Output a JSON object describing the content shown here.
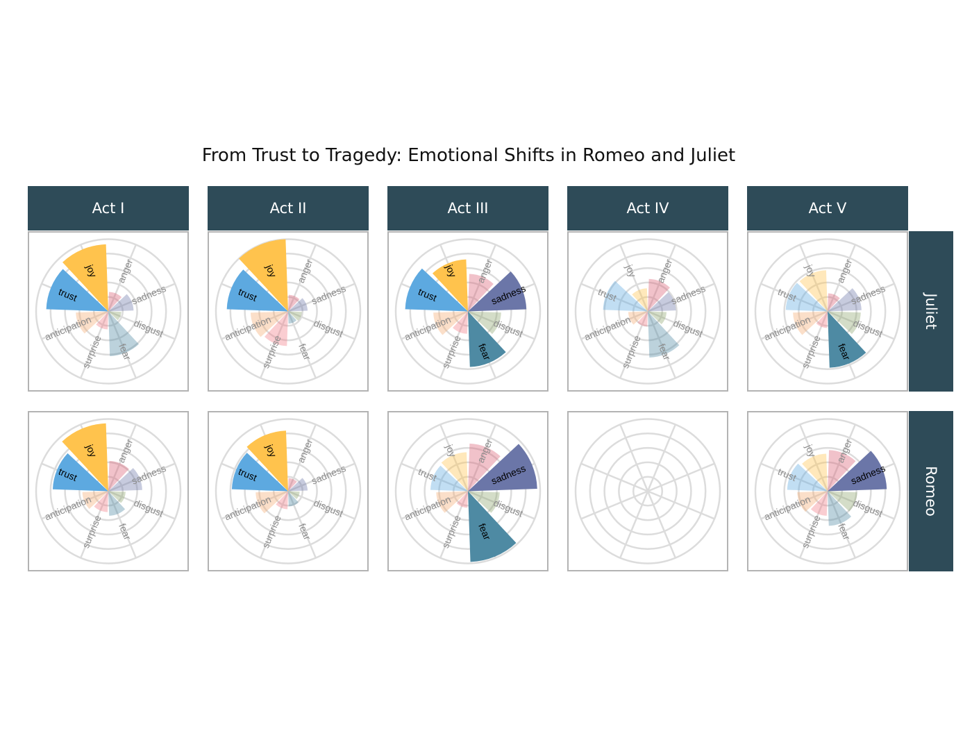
{
  "chart_data": {
    "type": "polar-bar",
    "title": "From Trust to Tragedy: Emotional Shifts in Romeo and Juliet",
    "columns": [
      "Act I",
      "Act II",
      "Act III",
      "Act IV",
      "Act V"
    ],
    "rows": [
      "Juliet",
      "Romeo"
    ],
    "emotions": [
      "anger",
      "sadness",
      "disgust",
      "fear",
      "surprise",
      "anticipation",
      "trust",
      "joy"
    ],
    "colors": {
      "anger": "#D95F73",
      "sadness": "#6B76A8",
      "disgust": "#8FA66E",
      "fear": "#4E8AA3",
      "surprise": "#F27C86",
      "anticipation": "#F5AA70",
      "trust": "#5DA9E0",
      "joy": "#FFC34D"
    },
    "strip_color": "#2E4B58",
    "highlight_threshold": 0.7,
    "radial_max": 1.0,
    "panels": [
      {
        "row": "Juliet",
        "column": "Act I",
        "values": [
          0.27,
          0.35,
          0.18,
          0.62,
          0.25,
          0.45,
          0.86,
          0.93
        ]
      },
      {
        "row": "Juliet",
        "column": "Act II",
        "values": [
          0.23,
          0.27,
          0.19,
          0.17,
          0.48,
          0.52,
          0.85,
          1.0
        ]
      },
      {
        "row": "Juliet",
        "column": "Act III",
        "values": [
          0.52,
          0.81,
          0.46,
          0.77,
          0.31,
          0.48,
          0.87,
          0.72
        ]
      },
      {
        "row": "Juliet",
        "column": "Act IV",
        "values": [
          0.45,
          0.39,
          0.26,
          0.64,
          0.21,
          0.27,
          0.62,
          0.32
        ]
      },
      {
        "row": "Juliet",
        "column": "Act V",
        "values": [
          0.25,
          0.47,
          0.46,
          0.78,
          0.23,
          0.48,
          0.58,
          0.57
        ]
      },
      {
        "row": "Romeo",
        "column": "Act I",
        "values": [
          0.42,
          0.47,
          0.24,
          0.34,
          0.29,
          0.36,
          0.77,
          0.94
        ]
      },
      {
        "row": "Romeo",
        "column": "Act II",
        "values": [
          0.18,
          0.27,
          0.16,
          0.21,
          0.25,
          0.45,
          0.78,
          0.84
        ]
      },
      {
        "row": "Romeo",
        "column": "Act III",
        "values": [
          0.66,
          0.96,
          0.44,
          0.98,
          0.23,
          0.44,
          0.52,
          0.54
        ]
      },
      {
        "row": "Romeo",
        "column": "Act IV",
        "values": []
      },
      {
        "row": "Romeo",
        "column": "Act V",
        "values": [
          0.57,
          0.82,
          0.41,
          0.48,
          0.34,
          0.42,
          0.56,
          0.52
        ]
      }
    ]
  }
}
